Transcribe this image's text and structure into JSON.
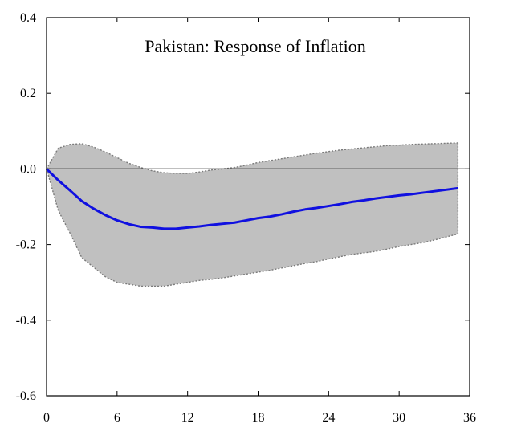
{
  "chart_data": {
    "type": "area",
    "title": "Pakistan: Response of Inflation",
    "xlabel": "",
    "ylabel": "",
    "xlim": [
      0,
      36
    ],
    "ylim": [
      -0.6,
      0.4
    ],
    "x_ticks": [
      0,
      6,
      12,
      18,
      24,
      30,
      36
    ],
    "y_ticks": [
      0.4,
      0.2,
      0.0,
      -0.2,
      -0.4,
      -0.6
    ],
    "y_tick_labels": [
      "0.4",
      "0.2",
      "0.0",
      "-0.2",
      "-0.4",
      "-0.6"
    ],
    "x_tick_labels": [
      "0",
      "6",
      "12",
      "18",
      "24",
      "30",
      "36"
    ],
    "grid": false,
    "zero_line": true,
    "x": [
      0,
      1,
      2,
      3,
      4,
      5,
      6,
      7,
      8,
      9,
      10,
      11,
      12,
      13,
      14,
      15,
      16,
      17,
      18,
      19,
      20,
      21,
      22,
      23,
      24,
      25,
      26,
      27,
      28,
      29,
      30,
      31,
      32,
      33,
      34,
      35
    ],
    "series": [
      {
        "role": "response",
        "color": "#1010e0",
        "values": [
          0.0,
          -0.03,
          -0.057,
          -0.085,
          -0.105,
          -0.122,
          -0.136,
          -0.146,
          -0.153,
          -0.155,
          -0.158,
          -0.158,
          -0.155,
          -0.152,
          -0.148,
          -0.145,
          -0.142,
          -0.136,
          -0.13,
          -0.126,
          -0.12,
          -0.113,
          -0.107,
          -0.103,
          -0.098,
          -0.093,
          -0.087,
          -0.083,
          -0.078,
          -0.074,
          -0.07,
          -0.067,
          -0.063,
          -0.059,
          -0.055,
          -0.051
        ]
      },
      {
        "role": "upper-band",
        "color": "#c0c0c0",
        "values": [
          0.0,
          0.055,
          0.065,
          0.067,
          0.058,
          0.045,
          0.03,
          0.015,
          0.004,
          -0.005,
          -0.01,
          -0.012,
          -0.012,
          -0.008,
          -0.003,
          0.0,
          0.004,
          0.01,
          0.017,
          0.022,
          0.027,
          0.032,
          0.037,
          0.042,
          0.046,
          0.05,
          0.053,
          0.056,
          0.059,
          0.062,
          0.063,
          0.065,
          0.066,
          0.067,
          0.068,
          0.069
        ]
      },
      {
        "role": "lower-band",
        "color": "#c0c0c0",
        "values": [
          0.0,
          -0.11,
          -0.17,
          -0.235,
          -0.26,
          -0.285,
          -0.3,
          -0.305,
          -0.31,
          -0.31,
          -0.31,
          -0.305,
          -0.3,
          -0.295,
          -0.292,
          -0.288,
          -0.283,
          -0.278,
          -0.273,
          -0.268,
          -0.262,
          -0.256,
          -0.25,
          -0.245,
          -0.238,
          -0.232,
          -0.226,
          -0.222,
          -0.218,
          -0.212,
          -0.205,
          -0.2,
          -0.195,
          -0.188,
          -0.18,
          -0.172
        ]
      }
    ]
  }
}
